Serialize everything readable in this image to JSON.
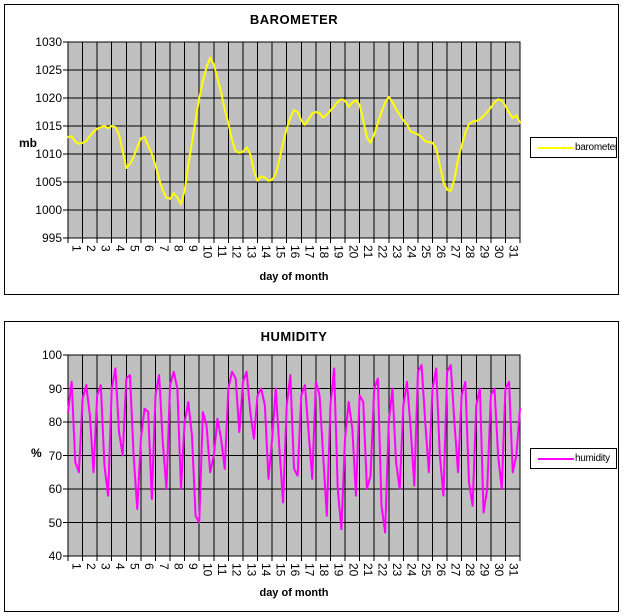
{
  "window": {
    "background": "#FFFFFF"
  },
  "chart_data": [
    {
      "type": "line",
      "title": "BAROMETER",
      "ylabel": "mb",
      "xlabel": "day of month",
      "legend_label": "barometer",
      "legend_position": "right",
      "line_color": "#FFFF00",
      "plot_bg_color": "#C0C0C0",
      "grid_color": "#000000",
      "grid": true,
      "ylim": [
        995,
        1030
      ],
      "y_ticks": [
        1030,
        1025,
        1020,
        1015,
        1010,
        1005,
        1000,
        995
      ],
      "x_ticks": [
        1,
        2,
        3,
        4,
        5,
        6,
        7,
        8,
        9,
        10,
        11,
        12,
        13,
        14,
        15,
        16,
        17,
        18,
        19,
        20,
        21,
        22,
        23,
        24,
        25,
        26,
        27,
        28,
        29,
        30,
        31
      ],
      "xlim": [
        1,
        32
      ],
      "x_start": 1,
      "x_step": 0.25,
      "note": "values estimated from plot at 4 samples per day",
      "values": [
        1013.0,
        1013.2,
        1012.2,
        1011.8,
        1012.0,
        1012.3,
        1013.2,
        1014.0,
        1014.5,
        1014.8,
        1015.0,
        1014.6,
        1015.0,
        1014.8,
        1013.5,
        1010.5,
        1007.5,
        1008.2,
        1009.5,
        1011.2,
        1012.8,
        1013.0,
        1011.5,
        1010.0,
        1008.0,
        1005.5,
        1003.5,
        1002.2,
        1002.0,
        1003.0,
        1002.2,
        1001.0,
        1003.5,
        1008.0,
        1012.0,
        1016.0,
        1020.0,
        1023.0,
        1025.5,
        1027.2,
        1026.0,
        1023.5,
        1021.0,
        1018.0,
        1015.5,
        1012.5,
        1010.5,
        1010.2,
        1010.4,
        1011.2,
        1010.0,
        1007.0,
        1005.2,
        1006.0,
        1005.8,
        1005.2,
        1005.4,
        1006.5,
        1009.0,
        1012.0,
        1014.5,
        1016.5,
        1017.8,
        1017.5,
        1016.0,
        1015.2,
        1016.2,
        1017.2,
        1017.5,
        1017.3,
        1016.5,
        1017.0,
        1017.8,
        1018.5,
        1019.3,
        1019.8,
        1019.5,
        1018.4,
        1019.2,
        1019.6,
        1018.8,
        1016.0,
        1013.0,
        1012.0,
        1013.5,
        1015.5,
        1017.5,
        1019.2,
        1020.2,
        1019.3,
        1018.0,
        1017.0,
        1016.0,
        1015.3,
        1014.0,
        1013.8,
        1013.5,
        1013.0,
        1012.3,
        1012.1,
        1012.0,
        1011.0,
        1008.0,
        1005.0,
        1003.6,
        1003.4,
        1005.5,
        1009.0,
        1011.5,
        1013.8,
        1015.3,
        1015.8,
        1015.9,
        1016.2,
        1016.8,
        1017.5,
        1018.3,
        1019.2,
        1019.8,
        1019.6,
        1018.6,
        1017.4,
        1016.4,
        1016.9,
        1015.6
      ]
    },
    {
      "type": "line",
      "title": "HUMIDITY",
      "ylabel": "%",
      "xlabel": "day of month",
      "legend_label": "humidity",
      "legend_position": "right",
      "line_color": "#FF00FF",
      "plot_bg_color": "#C0C0C0",
      "grid_color": "#000000",
      "grid": true,
      "ylim": [
        40,
        100
      ],
      "y_ticks": [
        100,
        90,
        80,
        70,
        60,
        50,
        40
      ],
      "x_ticks": [
        1,
        2,
        3,
        4,
        5,
        6,
        7,
        8,
        9,
        10,
        11,
        12,
        13,
        14,
        15,
        16,
        17,
        18,
        19,
        20,
        21,
        22,
        23,
        24,
        25,
        26,
        27,
        28,
        29,
        30,
        31
      ],
      "xlim": [
        1,
        32
      ],
      "x_start": 1,
      "x_step": 0.25,
      "note": "values estimated from plot at 4 samples per day",
      "values": [
        83,
        92,
        68,
        65,
        87,
        91,
        82,
        65,
        88,
        91,
        67,
        58,
        90,
        96,
        77,
        70,
        93,
        94,
        70,
        54,
        75,
        84,
        83,
        57,
        88,
        94,
        74,
        60,
        91,
        95,
        90,
        60,
        80,
        86,
        76,
        52,
        50,
        83,
        79,
        65,
        70,
        81,
        75,
        66,
        90,
        95,
        93,
        77,
        92,
        95,
        83,
        75,
        88,
        90,
        85,
        63,
        75,
        90,
        72,
        56,
        85,
        94,
        66,
        64,
        88,
        91,
        77,
        63,
        92,
        88,
        70,
        52,
        85,
        96,
        60,
        48,
        75,
        86,
        78,
        58,
        88,
        86,
        60,
        64,
        90,
        93,
        55,
        47,
        80,
        90,
        68,
        60,
        85,
        92,
        78,
        61,
        95,
        97,
        80,
        65,
        90,
        96,
        70,
        58,
        95,
        97,
        80,
        65,
        88,
        92,
        62,
        55,
        85,
        90,
        53,
        60,
        88,
        90,
        70,
        60,
        90,
        92,
        65,
        70,
        84
      ]
    }
  ]
}
